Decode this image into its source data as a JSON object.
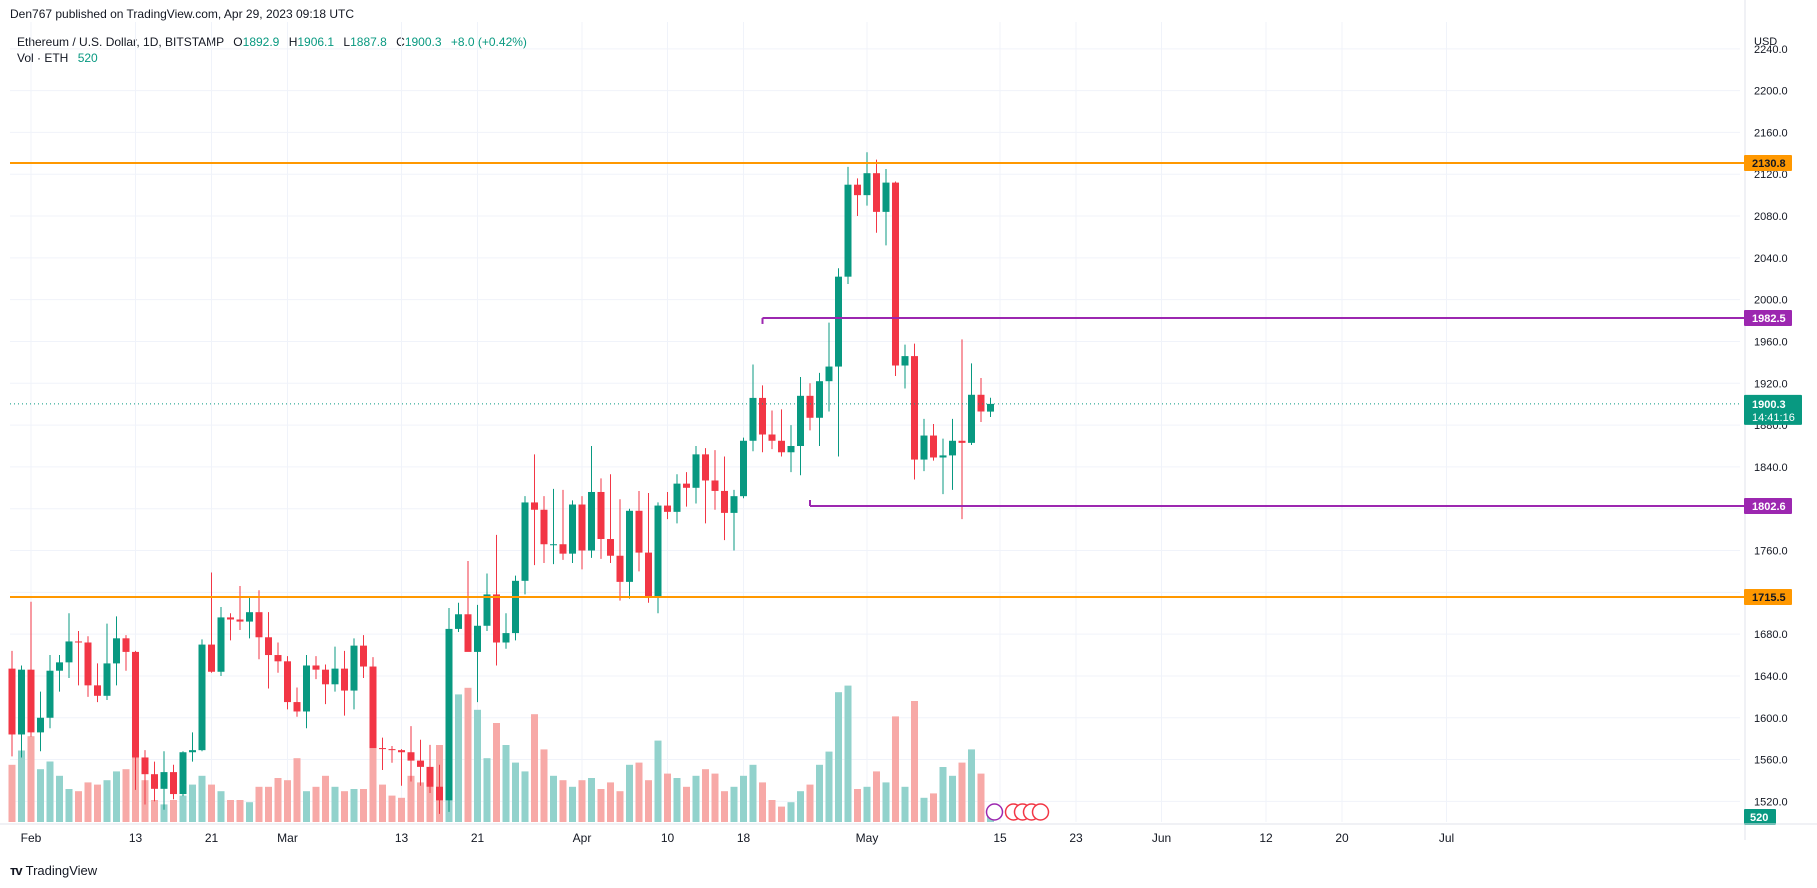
{
  "header": {
    "published": "Den767 published on TradingView.com, Apr 29, 2023 09:18 UTC"
  },
  "legend": {
    "symbol": "Ethereum / U.S. Dollar, 1D, BITSTAMP",
    "o_label": "O",
    "o_value": "1892.9",
    "h_label": "H",
    "h_value": "1906.1",
    "l_label": "L",
    "l_value": "1887.8",
    "c_label": "C",
    "c_value": "1900.3",
    "change": "+8.0 (+0.42%)",
    "vol_label": "Vol · ETH",
    "vol_value": "520"
  },
  "footer": {
    "brand": "TradingView"
  },
  "colors": {
    "up": "#089981",
    "down": "#F23645",
    "up_vol": "#92D2CC",
    "down_vol": "#F7A9A7",
    "orange": "#FF9800",
    "purple": "#9C27B0",
    "grid": "#F0F3FA",
    "text": "#131722"
  },
  "chart_data": {
    "type": "candlestick",
    "currency_label": "USD",
    "y_ticks": [
      "2240.0",
      "2200.0",
      "2160.0",
      "2120.0",
      "2080.0",
      "2040.0",
      "2000.0",
      "1960.0",
      "1920.0",
      "1880.0",
      "1840.0",
      "1800.0",
      "1760.0",
      "1720.0",
      "1680.0",
      "1640.0",
      "1600.0",
      "1560.0",
      "1520.0"
    ],
    "ylim": [
      1506,
      2258
    ],
    "x_ticks": [
      {
        "label": "Feb",
        "day": 2
      },
      {
        "label": "13",
        "day": 13
      },
      {
        "label": "21",
        "day": 21
      },
      {
        "label": "Mar",
        "day": 29
      },
      {
        "label": "13",
        "day": 41
      },
      {
        "label": "21",
        "day": 49
      },
      {
        "label": "Apr",
        "day": 60
      },
      {
        "label": "10",
        "day": 69
      },
      {
        "label": "18",
        "day": 77
      },
      {
        "label": "May",
        "day": 90
      },
      {
        "label": "15",
        "day": 104
      },
      {
        "label": "23",
        "day": 112
      },
      {
        "label": "Jun",
        "day": 121
      },
      {
        "label": "12",
        "day": 132
      },
      {
        "label": "20",
        "day": 140
      },
      {
        "label": "Jul",
        "day": 151
      }
    ],
    "levels": [
      {
        "label": "2130.8",
        "value": 2130.8,
        "color": "#FF9800",
        "start_day": -1
      },
      {
        "label": "1715.5",
        "value": 1715.5,
        "color": "#FF9800",
        "start_day": -1
      },
      {
        "label": "1982.5",
        "value": 1982.5,
        "color": "#9C27B0",
        "start_day": 79
      },
      {
        "label": "1802.6",
        "value": 1802.6,
        "color": "#9C27B0",
        "start_day": 84
      }
    ],
    "last_price": {
      "label": "1900.3",
      "countdown": "14:41:16",
      "value": 1900.3
    },
    "volume_label": "520",
    "candles": [
      {
        "o": 1647,
        "h": 1664,
        "l": 1563,
        "c": 1584,
        "v": 0.52
      },
      {
        "o": 1584,
        "h": 1650,
        "l": 1562,
        "c": 1646,
        "v": 0.65
      },
      {
        "o": 1646,
        "h": 1711,
        "l": 1582,
        "c": 1586,
        "v": 0.78
      },
      {
        "o": 1586,
        "h": 1625,
        "l": 1568,
        "c": 1600,
        "v": 0.48
      },
      {
        "o": 1600,
        "h": 1660,
        "l": 1590,
        "c": 1645,
        "v": 0.55
      },
      {
        "o": 1645,
        "h": 1660,
        "l": 1625,
        "c": 1653,
        "v": 0.42
      },
      {
        "o": 1653,
        "h": 1700,
        "l": 1638,
        "c": 1673,
        "v": 0.3
      },
      {
        "o": 1673,
        "h": 1683,
        "l": 1631,
        "c": 1672,
        "v": 0.28
      },
      {
        "o": 1672,
        "h": 1678,
        "l": 1620,
        "c": 1631,
        "v": 0.36
      },
      {
        "o": 1631,
        "h": 1652,
        "l": 1615,
        "c": 1621,
        "v": 0.34
      },
      {
        "o": 1621,
        "h": 1690,
        "l": 1617,
        "c": 1652,
        "v": 0.38
      },
      {
        "o": 1652,
        "h": 1697,
        "l": 1631,
        "c": 1676,
        "v": 0.46
      },
      {
        "o": 1676,
        "h": 1679,
        "l": 1645,
        "c": 1663,
        "v": 0.48
      },
      {
        "o": 1663,
        "h": 1664,
        "l": 1531,
        "c": 1562,
        "v": 0.72
      },
      {
        "o": 1562,
        "h": 1569,
        "l": 1517,
        "c": 1546,
        "v": 0.38
      },
      {
        "o": 1546,
        "h": 1558,
        "l": 1520,
        "c": 1532,
        "v": 0.2
      },
      {
        "o": 1532,
        "h": 1568,
        "l": 1512,
        "c": 1548,
        "v": 0.16
      },
      {
        "o": 1548,
        "h": 1555,
        "l": 1522,
        "c": 1527,
        "v": 0.2
      },
      {
        "o": 1527,
        "h": 1568,
        "l": 1525,
        "c": 1567,
        "v": 0.24
      },
      {
        "o": 1567,
        "h": 1586,
        "l": 1558,
        "c": 1569,
        "v": 0.34
      },
      {
        "o": 1569,
        "h": 1675,
        "l": 1568,
        "c": 1670,
        "v": 0.42
      },
      {
        "o": 1670,
        "h": 1739,
        "l": 1643,
        "c": 1644,
        "v": 0.34
      },
      {
        "o": 1644,
        "h": 1706,
        "l": 1640,
        "c": 1696,
        "v": 0.28
      },
      {
        "o": 1696,
        "h": 1700,
        "l": 1674,
        "c": 1694,
        "v": 0.2
      },
      {
        "o": 1694,
        "h": 1726,
        "l": 1684,
        "c": 1692,
        "v": 0.2
      },
      {
        "o": 1692,
        "h": 1715,
        "l": 1676,
        "c": 1701,
        "v": 0.18
      },
      {
        "o": 1701,
        "h": 1722,
        "l": 1656,
        "c": 1677,
        "v": 0.32
      },
      {
        "o": 1677,
        "h": 1701,
        "l": 1628,
        "c": 1660,
        "v": 0.32
      },
      {
        "o": 1660,
        "h": 1672,
        "l": 1643,
        "c": 1654,
        "v": 0.4
      },
      {
        "o": 1654,
        "h": 1659,
        "l": 1608,
        "c": 1615,
        "v": 0.38
      },
      {
        "o": 1615,
        "h": 1629,
        "l": 1601,
        "c": 1606,
        "v": 0.58
      },
      {
        "o": 1606,
        "h": 1660,
        "l": 1590,
        "c": 1650,
        "v": 0.28
      },
      {
        "o": 1650,
        "h": 1659,
        "l": 1637,
        "c": 1646,
        "v": 0.32
      },
      {
        "o": 1646,
        "h": 1651,
        "l": 1613,
        "c": 1632,
        "v": 0.42
      },
      {
        "o": 1632,
        "h": 1668,
        "l": 1625,
        "c": 1647,
        "v": 0.32
      },
      {
        "o": 1647,
        "h": 1664,
        "l": 1602,
        "c": 1626,
        "v": 0.28
      },
      {
        "o": 1626,
        "h": 1676,
        "l": 1608,
        "c": 1669,
        "v": 0.3
      },
      {
        "o": 1669,
        "h": 1679,
        "l": 1638,
        "c": 1649,
        "v": 0.3
      },
      {
        "o": 1649,
        "h": 1658,
        "l": 1571,
        "c": 1571,
        "v": 0.7
      },
      {
        "o": 1571,
        "h": 1581,
        "l": 1550,
        "c": 1570,
        "v": 0.34
      },
      {
        "o": 1570,
        "h": 1573,
        "l": 1557,
        "c": 1569,
        "v": 0.24
      },
      {
        "o": 1569,
        "h": 1570,
        "l": 1535,
        "c": 1567,
        "v": 0.22
      },
      {
        "o": 1567,
        "h": 1592,
        "l": 1539,
        "c": 1559,
        "v": 0.42
      },
      {
        "o": 1559,
        "h": 1579,
        "l": 1535,
        "c": 1553,
        "v": 0.36
      },
      {
        "o": 1553,
        "h": 1574,
        "l": 1528,
        "c": 1534,
        "v": 0.42
      },
      {
        "o": 1534,
        "h": 1555,
        "l": 1508,
        "c": 1521,
        "v": 0.7
      },
      {
        "o": 1521,
        "h": 1705,
        "l": 1510,
        "c": 1685,
        "v": 1.06
      },
      {
        "o": 1685,
        "h": 1710,
        "l": 1682,
        "c": 1699,
        "v": 1.16
      },
      {
        "o": 1699,
        "h": 1750,
        "l": 1665,
        "c": 1663,
        "v": 1.22
      },
      {
        "o": 1663,
        "h": 1708,
        "l": 1615,
        "c": 1688,
        "v": 1.02
      },
      {
        "o": 1688,
        "h": 1738,
        "l": 1683,
        "c": 1718,
        "v": 0.58
      },
      {
        "o": 1718,
        "h": 1775,
        "l": 1650,
        "c": 1672,
        "v": 0.9
      },
      {
        "o": 1672,
        "h": 1700,
        "l": 1666,
        "c": 1681,
        "v": 0.7
      },
      {
        "o": 1681,
        "h": 1736,
        "l": 1674,
        "c": 1731,
        "v": 0.54
      },
      {
        "o": 1731,
        "h": 1812,
        "l": 1718,
        "c": 1806,
        "v": 0.46
      },
      {
        "o": 1806,
        "h": 1852,
        "l": 1746,
        "c": 1799,
        "v": 0.98
      },
      {
        "o": 1799,
        "h": 1812,
        "l": 1748,
        "c": 1766,
        "v": 0.66
      },
      {
        "o": 1766,
        "h": 1819,
        "l": 1747,
        "c": 1766,
        "v": 0.42
      },
      {
        "o": 1766,
        "h": 1818,
        "l": 1751,
        "c": 1757,
        "v": 0.38
      },
      {
        "o": 1757,
        "h": 1808,
        "l": 1748,
        "c": 1804,
        "v": 0.32
      },
      {
        "o": 1804,
        "h": 1812,
        "l": 1742,
        "c": 1760,
        "v": 0.38
      },
      {
        "o": 1760,
        "h": 1860,
        "l": 1753,
        "c": 1816,
        "v": 0.4
      },
      {
        "o": 1816,
        "h": 1829,
        "l": 1752,
        "c": 1771,
        "v": 0.3
      },
      {
        "o": 1771,
        "h": 1833,
        "l": 1748,
        "c": 1755,
        "v": 0.36
      },
      {
        "o": 1755,
        "h": 1809,
        "l": 1712,
        "c": 1730,
        "v": 0.28
      },
      {
        "o": 1730,
        "h": 1800,
        "l": 1714,
        "c": 1798,
        "v": 0.52
      },
      {
        "o": 1798,
        "h": 1817,
        "l": 1740,
        "c": 1758,
        "v": 0.54
      },
      {
        "o": 1758,
        "h": 1815,
        "l": 1710,
        "c": 1715,
        "v": 0.38
      },
      {
        "o": 1715,
        "h": 1806,
        "l": 1700,
        "c": 1803,
        "v": 0.74
      },
      {
        "o": 1803,
        "h": 1816,
        "l": 1790,
        "c": 1797,
        "v": 0.44
      },
      {
        "o": 1797,
        "h": 1833,
        "l": 1786,
        "c": 1824,
        "v": 0.4
      },
      {
        "o": 1824,
        "h": 1835,
        "l": 1802,
        "c": 1820,
        "v": 0.32
      },
      {
        "o": 1820,
        "h": 1860,
        "l": 1805,
        "c": 1852,
        "v": 0.42
      },
      {
        "o": 1852,
        "h": 1858,
        "l": 1786,
        "c": 1827,
        "v": 0.48
      },
      {
        "o": 1827,
        "h": 1856,
        "l": 1799,
        "c": 1817,
        "v": 0.44
      },
      {
        "o": 1817,
        "h": 1850,
        "l": 1770,
        "c": 1796,
        "v": 0.28
      },
      {
        "o": 1796,
        "h": 1818,
        "l": 1760,
        "c": 1812,
        "v": 0.32
      },
      {
        "o": 1812,
        "h": 1868,
        "l": 1810,
        "c": 1865,
        "v": 0.42
      },
      {
        "o": 1865,
        "h": 1938,
        "l": 1855,
        "c": 1906,
        "v": 0.52
      },
      {
        "o": 1906,
        "h": 1918,
        "l": 1854,
        "c": 1871,
        "v": 0.36
      },
      {
        "o": 1871,
        "h": 1894,
        "l": 1857,
        "c": 1865,
        "v": 0.2
      },
      {
        "o": 1865,
        "h": 1895,
        "l": 1850,
        "c": 1854,
        "v": 0.14
      },
      {
        "o": 1854,
        "h": 1880,
        "l": 1835,
        "c": 1860,
        "v": 0.18
      },
      {
        "o": 1860,
        "h": 1926,
        "l": 1832,
        "c": 1908,
        "v": 0.28
      },
      {
        "o": 1908,
        "h": 1920,
        "l": 1875,
        "c": 1887,
        "v": 0.34
      },
      {
        "o": 1887,
        "h": 1930,
        "l": 1860,
        "c": 1922,
        "v": 0.52
      },
      {
        "o": 1922,
        "h": 1978,
        "l": 1893,
        "c": 1936,
        "v": 0.64
      },
      {
        "o": 1936,
        "h": 2030,
        "l": 1850,
        "c": 2022,
        "v": 1.18
      },
      {
        "o": 2022,
        "h": 2127,
        "l": 2015,
        "c": 2110,
        "v": 1.24
      },
      {
        "o": 2110,
        "h": 2116,
        "l": 2080,
        "c": 2100,
        "v": 0.3
      },
      {
        "o": 2100,
        "h": 2141,
        "l": 2090,
        "c": 2121,
        "v": 0.32
      },
      {
        "o": 2121,
        "h": 2134,
        "l": 2064,
        "c": 2084,
        "v": 0.46
      },
      {
        "o": 2084,
        "h": 2125,
        "l": 2052,
        "c": 2112,
        "v": 0.36
      },
      {
        "o": 2112,
        "h": 2113,
        "l": 1927,
        "c": 1937,
        "v": 0.96
      },
      {
        "o": 1937,
        "h": 1957,
        "l": 1915,
        "c": 1946,
        "v": 0.32
      },
      {
        "o": 1946,
        "h": 1958,
        "l": 1828,
        "c": 1847,
        "v": 1.1
      },
      {
        "o": 1847,
        "h": 1886,
        "l": 1836,
        "c": 1870,
        "v": 0.22
      },
      {
        "o": 1870,
        "h": 1881,
        "l": 1846,
        "c": 1849,
        "v": 0.26
      },
      {
        "o": 1849,
        "h": 1867,
        "l": 1814,
        "c": 1851,
        "v": 0.5
      },
      {
        "o": 1851,
        "h": 1886,
        "l": 1818,
        "c": 1865,
        "v": 0.42
      },
      {
        "o": 1865,
        "h": 1962,
        "l": 1790,
        "c": 1863,
        "v": 0.54
      },
      {
        "o": 1863,
        "h": 1939,
        "l": 1861,
        "c": 1909,
        "v": 0.66
      },
      {
        "o": 1909,
        "h": 1925,
        "l": 1883,
        "c": 1893,
        "v": 0.44
      },
      {
        "o": 1892.9,
        "h": 1906.1,
        "l": 1887.8,
        "c": 1900.3,
        "v": 0.09
      }
    ]
  }
}
